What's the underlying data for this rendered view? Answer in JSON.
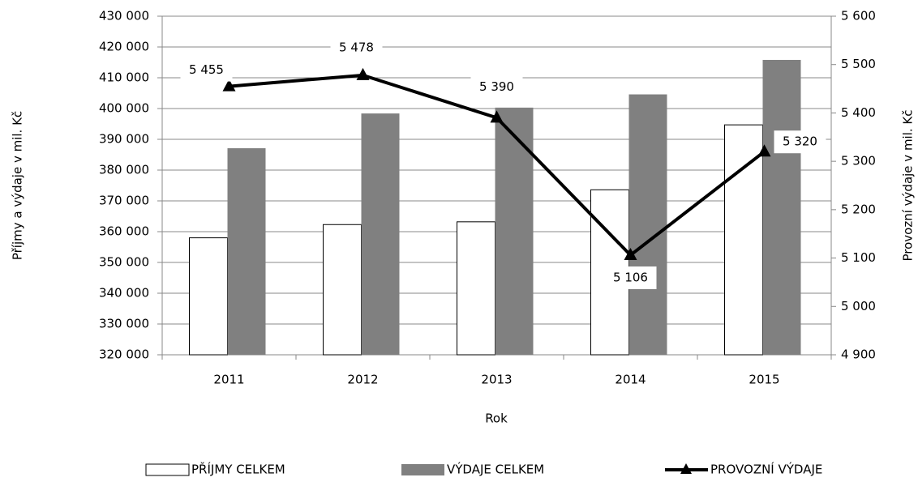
{
  "chart_data": {
    "type": "bar-line",
    "categories": [
      "2011",
      "2012",
      "2013",
      "2014",
      "2015"
    ],
    "xlabel": "Rok",
    "ylabel": "Příjmy a výdaje v mil. Kč",
    "y2label": "Provozní výdaje v mil. Kč",
    "ylim": [
      320000,
      430000
    ],
    "yticks": [
      {
        "value": 320000,
        "label": "320 000"
      },
      {
        "value": 330000,
        "label": "330 000"
      },
      {
        "value": 340000,
        "label": "340 000"
      },
      {
        "value": 350000,
        "label": "350 000"
      },
      {
        "value": 360000,
        "label": "360 000"
      },
      {
        "value": 370000,
        "label": "370 000"
      },
      {
        "value": 380000,
        "label": "380 000"
      },
      {
        "value": 390000,
        "label": "390 000"
      },
      {
        "value": 400000,
        "label": "400 000"
      },
      {
        "value": 410000,
        "label": "410 000"
      },
      {
        "value": 420000,
        "label": "420 000"
      },
      {
        "value": 430000,
        "label": "430 000"
      }
    ],
    "y2lim": [
      4900,
      5600
    ],
    "y2ticks": [
      {
        "value": 4900,
        "label": "4 900"
      },
      {
        "value": 5000,
        "label": "5 000"
      },
      {
        "value": 5100,
        "label": "5 100"
      },
      {
        "value": 5200,
        "label": "5 200"
      },
      {
        "value": 5300,
        "label": "5 300"
      },
      {
        "value": 5400,
        "label": "5 400"
      },
      {
        "value": 5500,
        "label": "5 500"
      },
      {
        "value": 5600,
        "label": "5 600"
      }
    ],
    "grid": true,
    "legend": "bottom",
    "series": [
      {
        "name": "PŘÍJMY CELKEM",
        "type": "bar",
        "color": "#ffffff",
        "values": [
          358000,
          362300,
          363200,
          373600,
          394700
        ]
      },
      {
        "name": "VÝDAJE CELKEM",
        "type": "bar",
        "color": "#808080",
        "values": [
          387100,
          398400,
          400300,
          404600,
          415800
        ]
      },
      {
        "name": "PROVOZNÍ VÝDAJE",
        "type": "line",
        "axis": "y2",
        "color": "#000000",
        "values": [
          5455,
          5478,
          5390,
          5106,
          5320
        ],
        "value_labels": [
          "5 455",
          "5 478",
          "5 390",
          "5 106",
          "5 320"
        ]
      }
    ]
  }
}
